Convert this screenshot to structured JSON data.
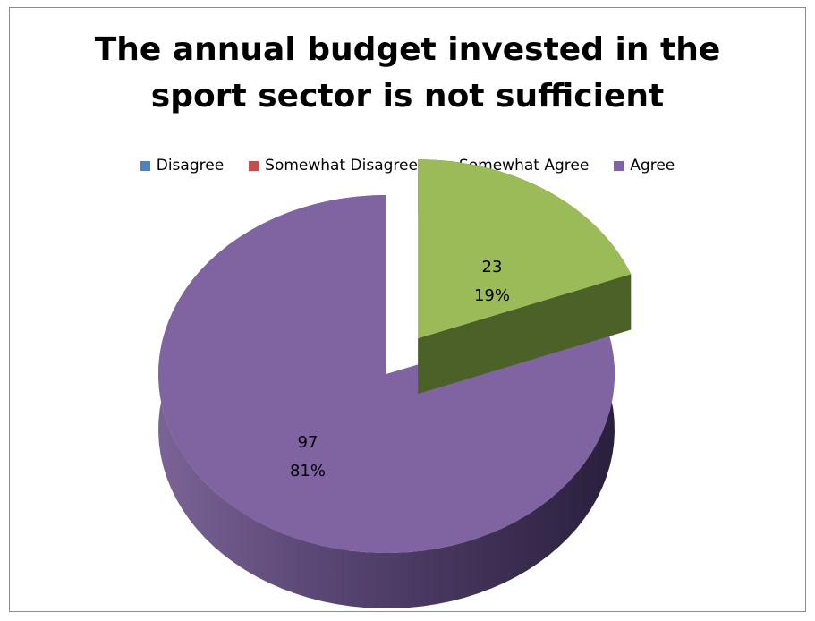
{
  "chart_data": {
    "type": "pie",
    "title_lines": [
      "The annual budget invested in the",
      "sport sector is not sufficient"
    ],
    "legend_position": "top",
    "three_d": true,
    "categories": [
      "Disagree",
      "Somewhat Disagree",
      "Somewhat Agree",
      "Agree"
    ],
    "values": [
      0,
      0,
      23,
      97
    ],
    "percents": [
      "0%",
      "0%",
      "19%",
      "81%"
    ],
    "colors": [
      "#4f81bd",
      "#c0504d",
      "#9bbb59",
      "#8064a2"
    ],
    "data_labels": [
      {
        "value": "23",
        "percent": "19%"
      },
      {
        "value": "97",
        "percent": "81%"
      }
    ]
  }
}
